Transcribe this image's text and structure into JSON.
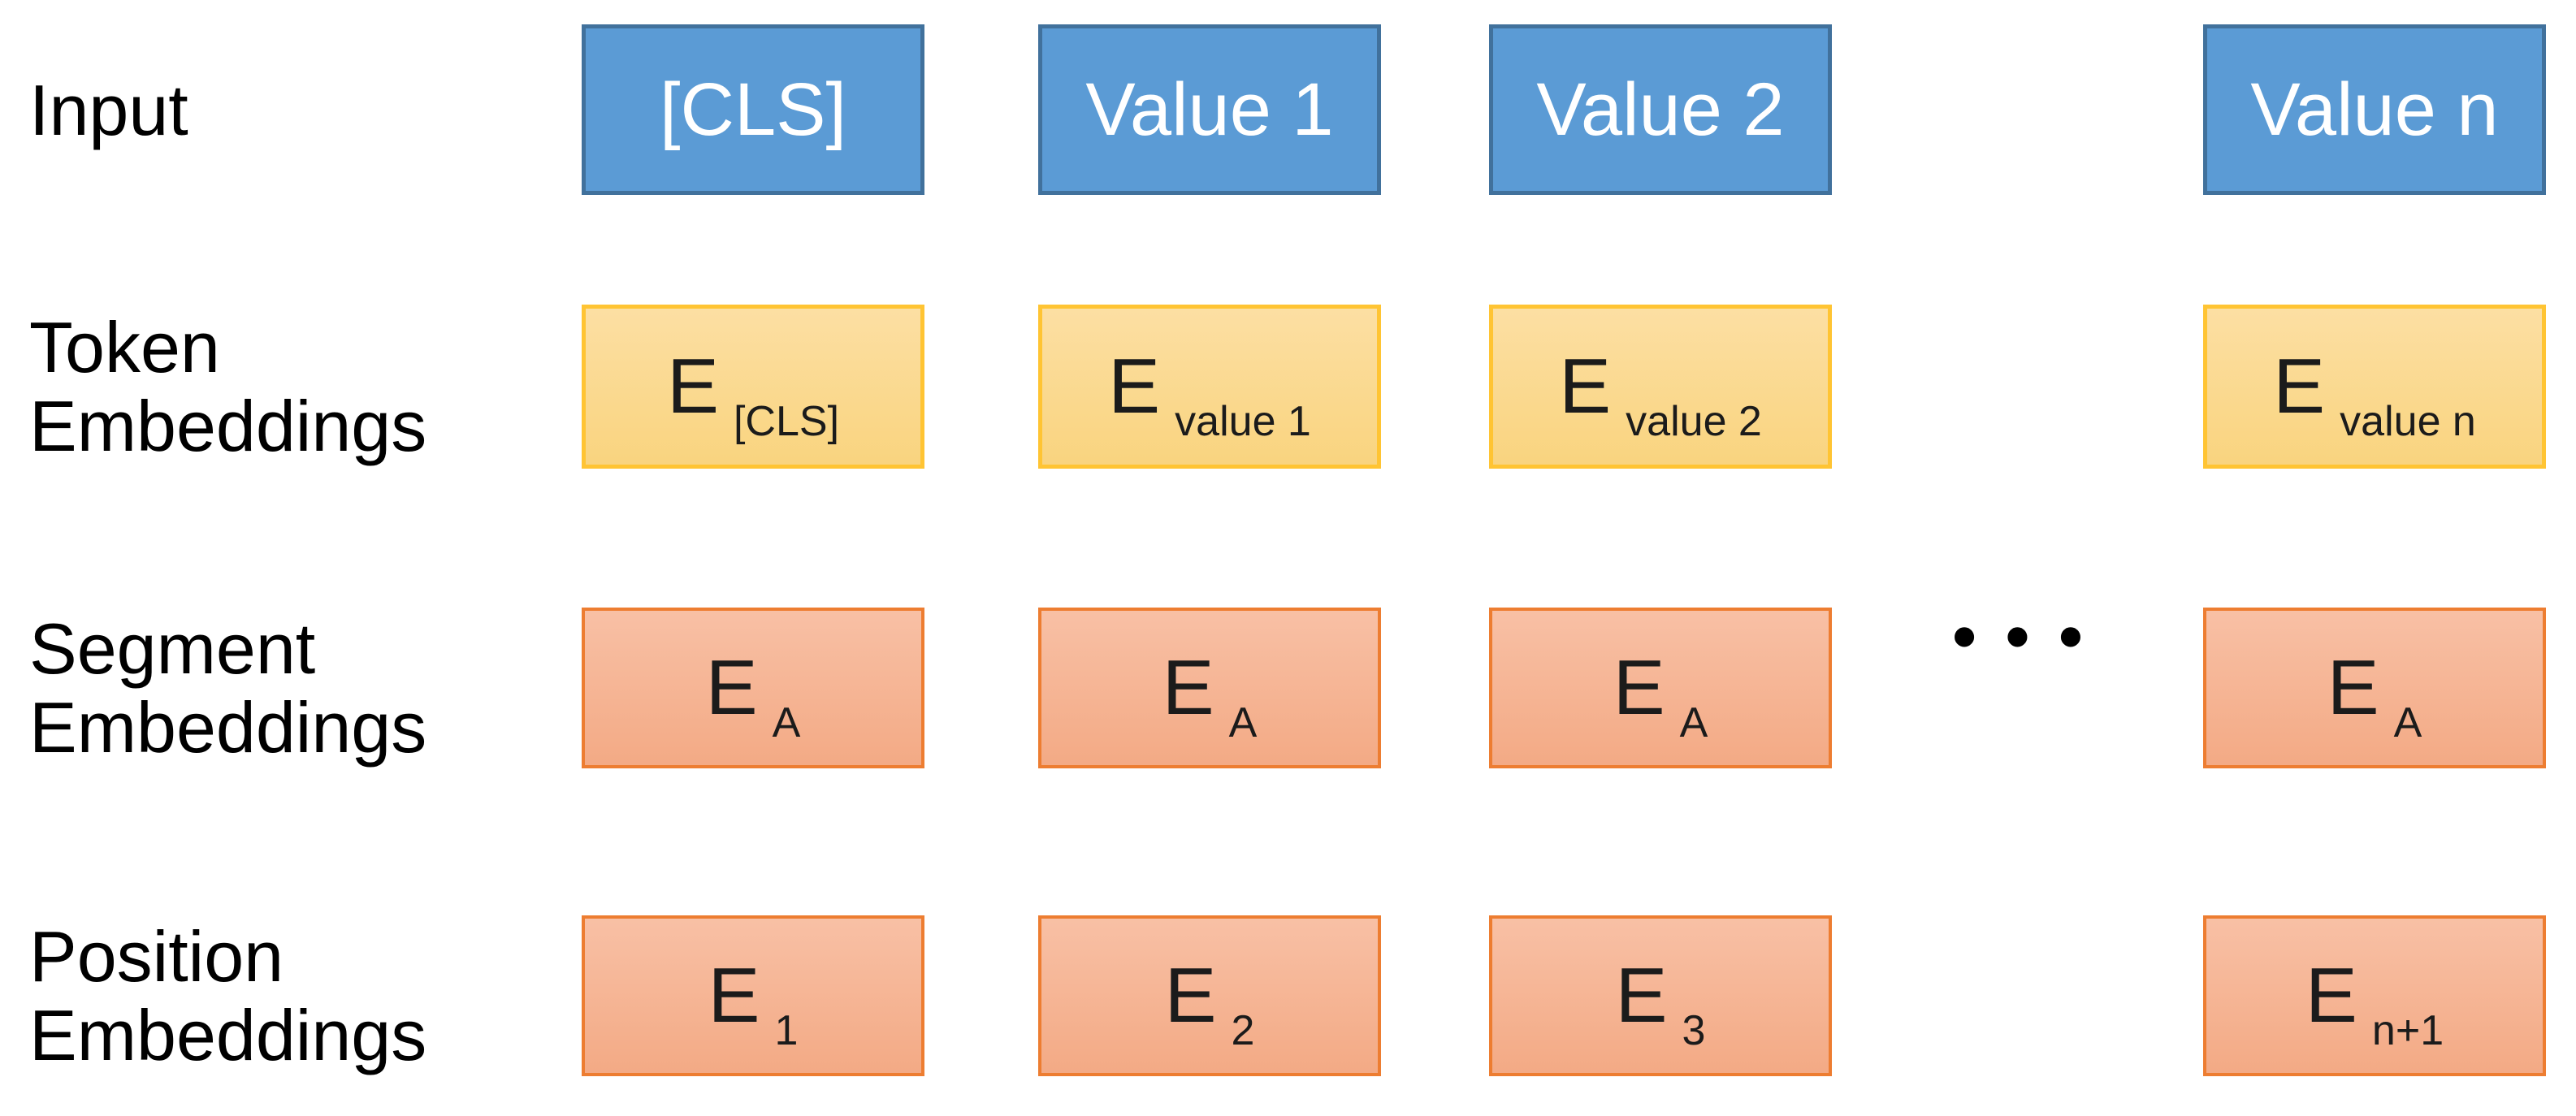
{
  "diagram": {
    "rows": [
      {
        "name": "input",
        "label_lines": [
          "Input"
        ],
        "cells": [
          {
            "text": "[CLS]"
          },
          {
            "text": "Value 1"
          },
          {
            "text": "Value 2"
          },
          {
            "text": "Value n"
          }
        ]
      },
      {
        "name": "token-embeddings",
        "label_lines": [
          "Token",
          "Embeddings"
        ],
        "cells": [
          {
            "main": "E",
            "sub": "[CLS]"
          },
          {
            "main": "E",
            "sub": "value 1"
          },
          {
            "main": "E",
            "sub": "value 2"
          },
          {
            "main": "E",
            "sub": "value n"
          }
        ]
      },
      {
        "name": "segment-embeddings",
        "label_lines": [
          "Segment",
          "Embeddings"
        ],
        "cells": [
          {
            "main": "E",
            "sub": "A"
          },
          {
            "main": "E",
            "sub": "A"
          },
          {
            "main": "E",
            "sub": "A"
          },
          {
            "main": "E",
            "sub": "A"
          }
        ]
      },
      {
        "name": "position-embeddings",
        "label_lines": [
          "Position",
          "Embeddings"
        ],
        "cells": [
          {
            "main": "E",
            "sub": "1"
          },
          {
            "main": "E",
            "sub": "2"
          },
          {
            "main": "E",
            "sub": "3"
          },
          {
            "main": "E",
            "sub": "n+1"
          }
        ]
      }
    ],
    "ellipsis": "•••",
    "colors": {
      "background": "#FFFFFF",
      "label_text": "#000000",
      "cell_text": "#1B1B1B",
      "input_fill": "#5B9BD5",
      "input_border": "#41719C",
      "input_text": "#FFFFFF",
      "token_fill_top": "#FCDFA3",
      "token_fill_bottom": "#F9D47F",
      "token_border": "#FFC433",
      "segment_fill_top": "#F8C0A5",
      "segment_fill_bottom": "#F3AA85",
      "segment_border": "#ED7D31",
      "ellipsis_color": "#000000"
    }
  }
}
